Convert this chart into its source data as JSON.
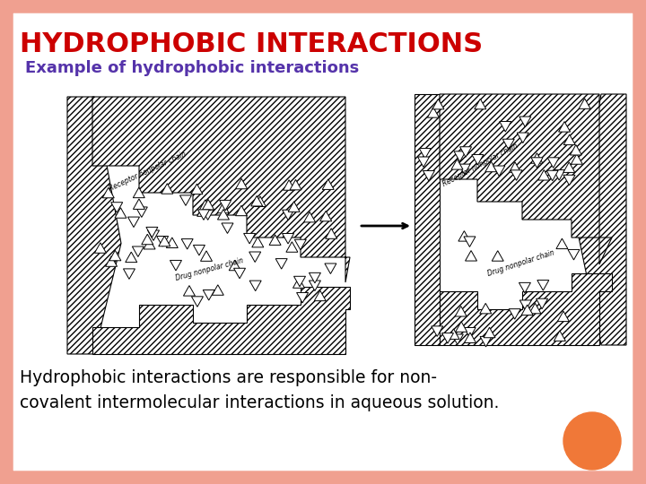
{
  "title": "HYDROPHOBIC INTERACTIONS",
  "title_color": "#CC0000",
  "subtitle": "Example of hydrophobic interactions",
  "subtitle_color": "#5533AA",
  "body_text_line1": "Hydrophobic interactions are responsible for non-",
  "body_text_line2": "covalent intermolecular interactions in aqueous solution.",
  "body_text_color": "#000000",
  "bg_color": "#FFFFFF",
  "border_color": "#F0A090",
  "orange_circle_color": "#F07838",
  "figsize": [
    7.2,
    5.4
  ],
  "dpi": 100
}
